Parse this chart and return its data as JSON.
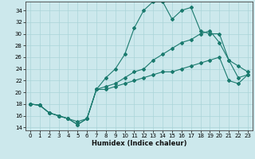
{
  "xlabel": "Humidex (Indice chaleur)",
  "background_color": "#cce8ec",
  "grid_color": "#aad4d8",
  "line_color": "#1a7a6e",
  "xlim": [
    -0.5,
    23.5
  ],
  "ylim": [
    13.5,
    35.5
  ],
  "xticks": [
    0,
    1,
    2,
    3,
    4,
    5,
    6,
    7,
    8,
    9,
    10,
    11,
    12,
    13,
    14,
    15,
    16,
    17,
    18,
    19,
    20,
    21,
    22,
    23
  ],
  "yticks": [
    14,
    16,
    18,
    20,
    22,
    24,
    26,
    28,
    30,
    32,
    34
  ],
  "line_upper": {
    "x": [
      0,
      1,
      2,
      3,
      4,
      5,
      6,
      7,
      8,
      9,
      10,
      11,
      12,
      13,
      14,
      15,
      16,
      17,
      18,
      19,
      20,
      21,
      22,
      23
    ],
    "y": [
      18,
      17.8,
      16.5,
      16.0,
      15.5,
      14.5,
      15.5,
      20.5,
      22.5,
      24.0,
      26.5,
      31.0,
      34.0,
      35.5,
      35.5,
      32.5,
      34.0,
      34.5,
      30.5,
      30.0,
      30.0,
      25.5,
      24.5,
      23.5
    ]
  },
  "line_mid": {
    "x": [
      0,
      1,
      2,
      3,
      4,
      5,
      6,
      7,
      8,
      9,
      10,
      11,
      12,
      13,
      14,
      15,
      16,
      17,
      18,
      19,
      20,
      21,
      22,
      23
    ],
    "y": [
      18,
      17.8,
      16.5,
      16.0,
      15.5,
      15.0,
      15.5,
      20.5,
      21.0,
      21.5,
      22.5,
      23.5,
      24.0,
      25.5,
      26.5,
      27.5,
      28.5,
      29.0,
      30.0,
      30.5,
      28.5,
      25.5,
      22.5,
      23.0
    ]
  },
  "line_lower": {
    "x": [
      0,
      1,
      2,
      3,
      4,
      5,
      6,
      7,
      8,
      9,
      10,
      11,
      12,
      13,
      14,
      15,
      16,
      17,
      18,
      19,
      20,
      21,
      22,
      23
    ],
    "y": [
      18,
      17.8,
      16.5,
      16.0,
      15.5,
      14.5,
      15.5,
      20.5,
      20.5,
      21.0,
      21.5,
      22.0,
      22.5,
      23.0,
      23.5,
      23.5,
      24.0,
      24.5,
      25.0,
      25.5,
      26.0,
      22.0,
      21.5,
      23.0
    ]
  }
}
